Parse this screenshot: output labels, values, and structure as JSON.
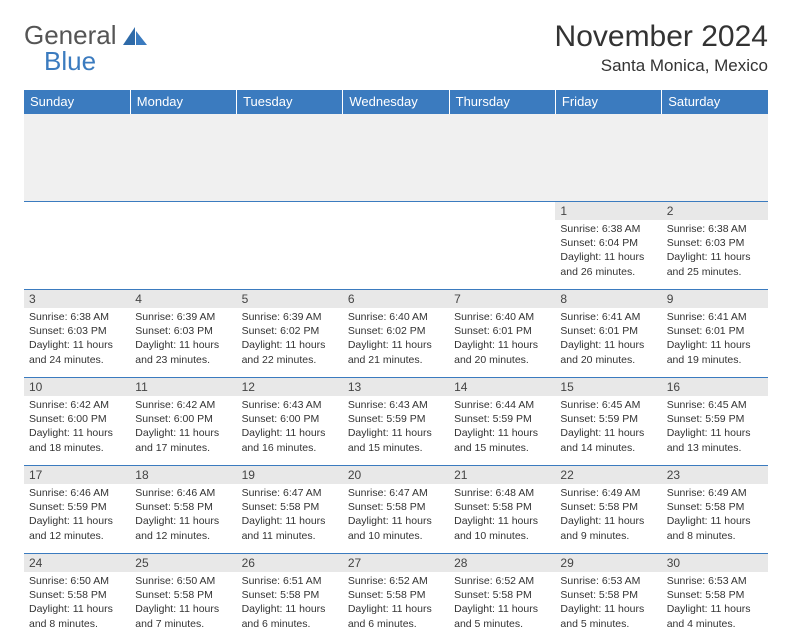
{
  "logo": {
    "text1": "General",
    "text2": "Blue"
  },
  "title": {
    "month": "November 2024",
    "location": "Santa Monica, Mexico"
  },
  "colors": {
    "header_bg": "#3b7bbf",
    "header_text": "#ffffff",
    "daynum_bg": "#e8e8e8",
    "border": "#3b7bbf",
    "logo_accent": "#3b7bbf",
    "body_text": "#333333",
    "background": "#ffffff"
  },
  "weekdays": [
    "Sunday",
    "Monday",
    "Tuesday",
    "Wednesday",
    "Thursday",
    "Friday",
    "Saturday"
  ],
  "weeks": [
    [
      {
        "n": "",
        "sr": "",
        "ss": "",
        "dl": "",
        "empty": true
      },
      {
        "n": "",
        "sr": "",
        "ss": "",
        "dl": "",
        "empty": true
      },
      {
        "n": "",
        "sr": "",
        "ss": "",
        "dl": "",
        "empty": true
      },
      {
        "n": "",
        "sr": "",
        "ss": "",
        "dl": "",
        "empty": true
      },
      {
        "n": "",
        "sr": "",
        "ss": "",
        "dl": "",
        "empty": true
      },
      {
        "n": "1",
        "sr": "Sunrise: 6:38 AM",
        "ss": "Sunset: 6:04 PM",
        "dl": "Daylight: 11 hours and 26 minutes."
      },
      {
        "n": "2",
        "sr": "Sunrise: 6:38 AM",
        "ss": "Sunset: 6:03 PM",
        "dl": "Daylight: 11 hours and 25 minutes."
      }
    ],
    [
      {
        "n": "3",
        "sr": "Sunrise: 6:38 AM",
        "ss": "Sunset: 6:03 PM",
        "dl": "Daylight: 11 hours and 24 minutes."
      },
      {
        "n": "4",
        "sr": "Sunrise: 6:39 AM",
        "ss": "Sunset: 6:03 PM",
        "dl": "Daylight: 11 hours and 23 minutes."
      },
      {
        "n": "5",
        "sr": "Sunrise: 6:39 AM",
        "ss": "Sunset: 6:02 PM",
        "dl": "Daylight: 11 hours and 22 minutes."
      },
      {
        "n": "6",
        "sr": "Sunrise: 6:40 AM",
        "ss": "Sunset: 6:02 PM",
        "dl": "Daylight: 11 hours and 21 minutes."
      },
      {
        "n": "7",
        "sr": "Sunrise: 6:40 AM",
        "ss": "Sunset: 6:01 PM",
        "dl": "Daylight: 11 hours and 20 minutes."
      },
      {
        "n": "8",
        "sr": "Sunrise: 6:41 AM",
        "ss": "Sunset: 6:01 PM",
        "dl": "Daylight: 11 hours and 20 minutes."
      },
      {
        "n": "9",
        "sr": "Sunrise: 6:41 AM",
        "ss": "Sunset: 6:01 PM",
        "dl": "Daylight: 11 hours and 19 minutes."
      }
    ],
    [
      {
        "n": "10",
        "sr": "Sunrise: 6:42 AM",
        "ss": "Sunset: 6:00 PM",
        "dl": "Daylight: 11 hours and 18 minutes."
      },
      {
        "n": "11",
        "sr": "Sunrise: 6:42 AM",
        "ss": "Sunset: 6:00 PM",
        "dl": "Daylight: 11 hours and 17 minutes."
      },
      {
        "n": "12",
        "sr": "Sunrise: 6:43 AM",
        "ss": "Sunset: 6:00 PM",
        "dl": "Daylight: 11 hours and 16 minutes."
      },
      {
        "n": "13",
        "sr": "Sunrise: 6:43 AM",
        "ss": "Sunset: 5:59 PM",
        "dl": "Daylight: 11 hours and 15 minutes."
      },
      {
        "n": "14",
        "sr": "Sunrise: 6:44 AM",
        "ss": "Sunset: 5:59 PM",
        "dl": "Daylight: 11 hours and 15 minutes."
      },
      {
        "n": "15",
        "sr": "Sunrise: 6:45 AM",
        "ss": "Sunset: 5:59 PM",
        "dl": "Daylight: 11 hours and 14 minutes."
      },
      {
        "n": "16",
        "sr": "Sunrise: 6:45 AM",
        "ss": "Sunset: 5:59 PM",
        "dl": "Daylight: 11 hours and 13 minutes."
      }
    ],
    [
      {
        "n": "17",
        "sr": "Sunrise: 6:46 AM",
        "ss": "Sunset: 5:59 PM",
        "dl": "Daylight: 11 hours and 12 minutes."
      },
      {
        "n": "18",
        "sr": "Sunrise: 6:46 AM",
        "ss": "Sunset: 5:58 PM",
        "dl": "Daylight: 11 hours and 12 minutes."
      },
      {
        "n": "19",
        "sr": "Sunrise: 6:47 AM",
        "ss": "Sunset: 5:58 PM",
        "dl": "Daylight: 11 hours and 11 minutes."
      },
      {
        "n": "20",
        "sr": "Sunrise: 6:47 AM",
        "ss": "Sunset: 5:58 PM",
        "dl": "Daylight: 11 hours and 10 minutes."
      },
      {
        "n": "21",
        "sr": "Sunrise: 6:48 AM",
        "ss": "Sunset: 5:58 PM",
        "dl": "Daylight: 11 hours and 10 minutes."
      },
      {
        "n": "22",
        "sr": "Sunrise: 6:49 AM",
        "ss": "Sunset: 5:58 PM",
        "dl": "Daylight: 11 hours and 9 minutes."
      },
      {
        "n": "23",
        "sr": "Sunrise: 6:49 AM",
        "ss": "Sunset: 5:58 PM",
        "dl": "Daylight: 11 hours and 8 minutes."
      }
    ],
    [
      {
        "n": "24",
        "sr": "Sunrise: 6:50 AM",
        "ss": "Sunset: 5:58 PM",
        "dl": "Daylight: 11 hours and 8 minutes."
      },
      {
        "n": "25",
        "sr": "Sunrise: 6:50 AM",
        "ss": "Sunset: 5:58 PM",
        "dl": "Daylight: 11 hours and 7 minutes."
      },
      {
        "n": "26",
        "sr": "Sunrise: 6:51 AM",
        "ss": "Sunset: 5:58 PM",
        "dl": "Daylight: 11 hours and 6 minutes."
      },
      {
        "n": "27",
        "sr": "Sunrise: 6:52 AM",
        "ss": "Sunset: 5:58 PM",
        "dl": "Daylight: 11 hours and 6 minutes."
      },
      {
        "n": "28",
        "sr": "Sunrise: 6:52 AM",
        "ss": "Sunset: 5:58 PM",
        "dl": "Daylight: 11 hours and 5 minutes."
      },
      {
        "n": "29",
        "sr": "Sunrise: 6:53 AM",
        "ss": "Sunset: 5:58 PM",
        "dl": "Daylight: 11 hours and 5 minutes."
      },
      {
        "n": "30",
        "sr": "Sunrise: 6:53 AM",
        "ss": "Sunset: 5:58 PM",
        "dl": "Daylight: 11 hours and 4 minutes."
      }
    ]
  ]
}
